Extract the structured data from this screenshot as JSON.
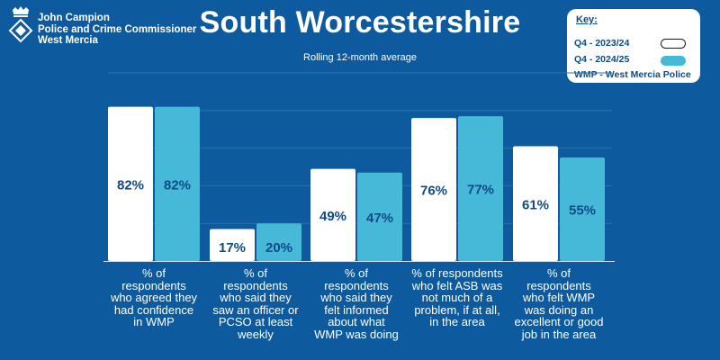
{
  "logo": {
    "lines": [
      "John Campion",
      "Police and Crime Commissioner",
      "West Mercia"
    ]
  },
  "title": "South Worcestershire",
  "subtitle": "Rolling 12-month average",
  "key": {
    "title": "Key:",
    "series1": "Q4 - 2023/24",
    "series2": "Q4 - 2024/25",
    "note": "WMP - West Mercia Police"
  },
  "colors": {
    "background": "#0d5a9e",
    "series1": "#ffffff",
    "series2": "#46b8d8",
    "value_text": "#0d4a8a"
  },
  "chart_data": {
    "type": "bar",
    "categories": [
      "% of respondents who agreed they had confidence in WMP",
      "% of respondents who said they saw an officer or PCSO at least weekly",
      "% of respondents who said they felt  informed about what WMP was doing",
      "% of respondents who felt ASB was not much of a problem, if at all, in the area",
      "% of respondents who felt WMP was doing an excellent or good job in the area"
    ],
    "series": [
      {
        "name": "Q4 - 2023/24",
        "values": [
          82,
          17,
          49,
          76,
          61
        ],
        "labels": [
          "82%",
          "17%",
          "49%",
          "76%",
          "61%"
        ]
      },
      {
        "name": "Q4 - 2024/25",
        "values": [
          82,
          20,
          47,
          77,
          55
        ],
        "labels": [
          "82%",
          "20%",
          "47%",
          "77%",
          "55%"
        ]
      }
    ],
    "ylim": [
      0,
      100
    ],
    "grid": true,
    "legend": "top-right"
  }
}
